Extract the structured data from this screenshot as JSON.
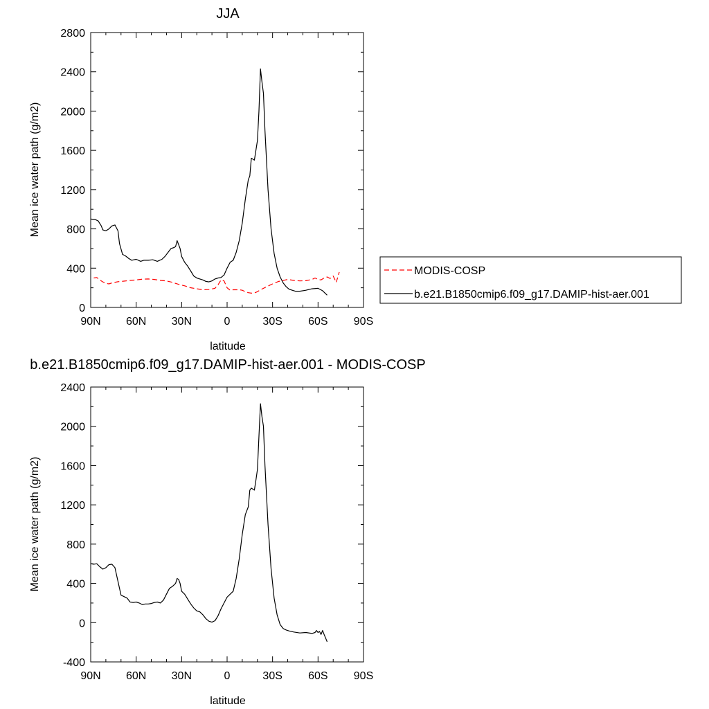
{
  "chart_data": [
    {
      "type": "line",
      "title": "JJA",
      "xlabel": "latitude",
      "ylabel": "Mean ice water path (g/m2)",
      "xlim": [
        90,
        -90
      ],
      "ylim": [
        0,
        2800
      ],
      "x_ticks": [
        90,
        60,
        30,
        0,
        -30,
        -60,
        -90
      ],
      "x_tick_labels": [
        "90N",
        "60N",
        "30N",
        "0",
        "30S",
        "60S",
        "90S"
      ],
      "y_ticks": [
        0,
        400,
        800,
        1200,
        1600,
        2000,
        2400,
        2800
      ],
      "y_tick_labels": [
        "0",
        "400",
        "800",
        "1200",
        "1600",
        "2000",
        "2400",
        "2800"
      ],
      "legend": "right",
      "series": [
        {
          "name": "MODIS-COSP",
          "color": "#ff0000",
          "dash": "dashed",
          "x": [
            88,
            86,
            84,
            82,
            80,
            78,
            76,
            72,
            68,
            64,
            60,
            56,
            52,
            48,
            44,
            40,
            36,
            32,
            28,
            24,
            20,
            16,
            12,
            8,
            6,
            4,
            2,
            0,
            -2,
            -4,
            -6,
            -8,
            -10,
            -12,
            -14,
            -16,
            -18,
            -20,
            -22,
            -24,
            -26,
            -28,
            -30,
            -32,
            -34,
            -36,
            -38,
            -40,
            -44,
            -48,
            -52,
            -56,
            -58,
            -60,
            -62,
            -64,
            -66,
            -68,
            -70,
            -72,
            -74
          ],
          "y": [
            300,
            305,
            280,
            260,
            245,
            240,
            250,
            262,
            268,
            275,
            280,
            288,
            290,
            285,
            275,
            270,
            255,
            235,
            220,
            200,
            190,
            180,
            182,
            195,
            230,
            280,
            270,
            200,
            175,
            180,
            180,
            180,
            175,
            160,
            150,
            145,
            148,
            160,
            180,
            195,
            210,
            225,
            240,
            252,
            265,
            270,
            278,
            285,
            275,
            270,
            272,
            285,
            300,
            285,
            280,
            300,
            310,
            295,
            320,
            255,
            360
          ]
        },
        {
          "name": "b.e21.B1850cmip6.f09_g17.DAMIP-hist-aer.001",
          "color": "#000000",
          "dash": "solid",
          "x": [
            90,
            87,
            85,
            83,
            82,
            80,
            78,
            76,
            74,
            72,
            71,
            69,
            67,
            65,
            63,
            60,
            57,
            55,
            52,
            49,
            46,
            43,
            41,
            39,
            37,
            35,
            34,
            33,
            32,
            31,
            30,
            28,
            26,
            24,
            22,
            20,
            18,
            16,
            14,
            12,
            10,
            8,
            6,
            4,
            2,
            0,
            -2,
            -4,
            -6,
            -8,
            -10,
            -12,
            -14,
            -15,
            -16,
            -18,
            -19,
            -20,
            -21,
            -22,
            -23,
            -24,
            -25,
            -27,
            -29,
            -31,
            -33,
            -35,
            -37,
            -39,
            -41,
            -43,
            -45,
            -48,
            -52,
            -56,
            -60,
            -63,
            -66
          ],
          "y": [
            900,
            895,
            880,
            830,
            790,
            780,
            800,
            830,
            840,
            780,
            650,
            540,
            525,
            500,
            480,
            490,
            470,
            480,
            480,
            485,
            470,
            490,
            520,
            560,
            600,
            610,
            620,
            680,
            640,
            600,
            520,
            460,
            420,
            370,
            320,
            300,
            290,
            280,
            265,
            260,
            270,
            290,
            300,
            305,
            330,
            400,
            460,
            480,
            560,
            680,
            860,
            1100,
            1300,
            1340,
            1520,
            1500,
            1600,
            1700,
            2000,
            2430,
            2300,
            2180,
            1800,
            1200,
            800,
            550,
            400,
            310,
            250,
            210,
            185,
            175,
            165,
            165,
            175,
            190,
            195,
            170,
            125
          ]
        }
      ]
    },
    {
      "type": "line",
      "title": "b.e21.B1850cmip6.f09_g17.DAMIP-hist-aer.001 - MODIS-COSP",
      "xlabel": "latitude",
      "ylabel": "Mean ice water path (g/m2)",
      "xlim": [
        90,
        -90
      ],
      "ylim": [
        -400,
        2400
      ],
      "x_ticks": [
        90,
        60,
        30,
        0,
        -30,
        -60,
        -90
      ],
      "x_tick_labels": [
        "90N",
        "60N",
        "30N",
        "0",
        "30S",
        "60S",
        "90S"
      ],
      "y_ticks": [
        -400,
        0,
        400,
        800,
        1200,
        1600,
        2000,
        2400
      ],
      "y_tick_labels": [
        "-400",
        "0",
        "400",
        "800",
        "1200",
        "1600",
        "2000",
        "2400"
      ],
      "series": [
        {
          "color": "#000000",
          "dash": "solid",
          "x": [
            90,
            88,
            86,
            84,
            82,
            80,
            78,
            76,
            74,
            72,
            70,
            68,
            66,
            64,
            62,
            60,
            58,
            56,
            54,
            52,
            50,
            48,
            46,
            44,
            42,
            40,
            38,
            36,
            34,
            33,
            32,
            31,
            30,
            28,
            26,
            24,
            22,
            20,
            18,
            16,
            14,
            12,
            10,
            8,
            6,
            4,
            2,
            0,
            -2,
            -4,
            -6,
            -8,
            -10,
            -12,
            -14,
            -15,
            -16,
            -18,
            -19,
            -20,
            -21,
            -22,
            -23,
            -24,
            -25,
            -27,
            -29,
            -31,
            -33,
            -35,
            -37,
            -39,
            -41,
            -44,
            -48,
            -52,
            -56,
            -58,
            -59,
            -60,
            -61,
            -62,
            -63,
            -64,
            -66
          ],
          "y": [
            600,
            595,
            600,
            570,
            545,
            560,
            590,
            595,
            560,
            420,
            280,
            265,
            250,
            210,
            205,
            210,
            200,
            185,
            190,
            190,
            195,
            205,
            210,
            200,
            230,
            290,
            350,
            370,
            400,
            450,
            440,
            400,
            320,
            290,
            240,
            190,
            150,
            120,
            110,
            80,
            40,
            15,
            5,
            20,
            70,
            140,
            200,
            260,
            290,
            320,
            450,
            650,
            900,
            1100,
            1180,
            1350,
            1370,
            1350,
            1450,
            1560,
            1900,
            2230,
            2100,
            2000,
            1600,
            1000,
            550,
            250,
            80,
            -20,
            -60,
            -75,
            -85,
            -95,
            -105,
            -100,
            -110,
            -100,
            -80,
            -100,
            -90,
            -120,
            -80,
            -120,
            -195
          ]
        }
      ]
    }
  ]
}
